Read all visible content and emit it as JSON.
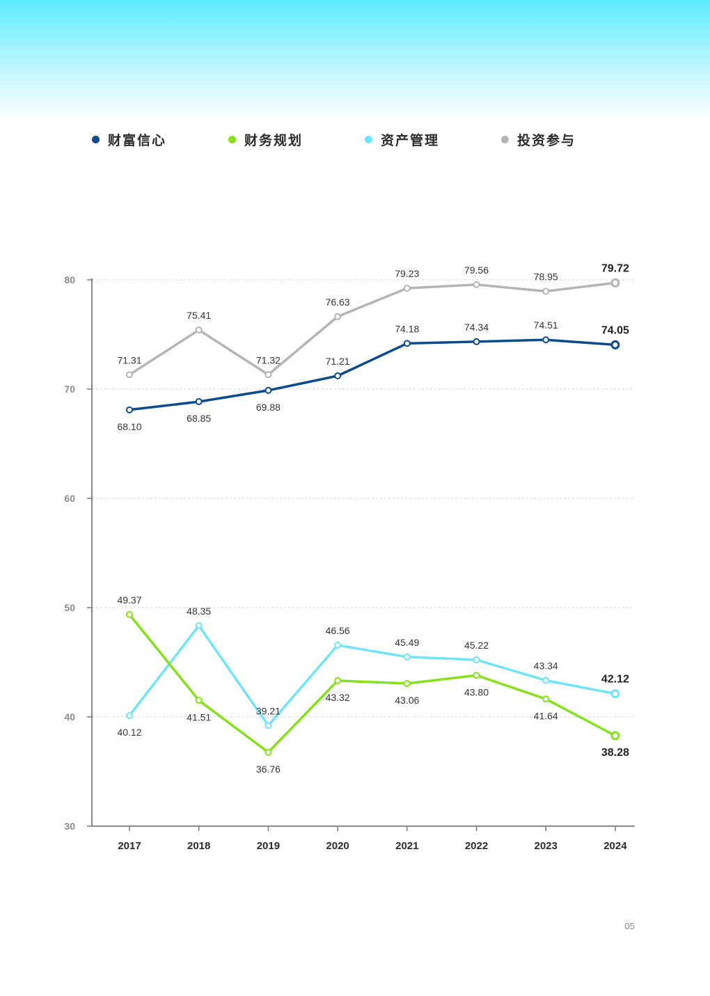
{
  "page_number": "05",
  "legend": [
    {
      "label": "财富信心",
      "color": "#0b4a8c"
    },
    {
      "label": "财务规划",
      "color": "#86e01b"
    },
    {
      "label": "资产管理",
      "color": "#6fe3f7"
    },
    {
      "label": "投资参与",
      "color": "#b4b4b4"
    }
  ],
  "chart_data": {
    "type": "line",
    "x": [
      "2017",
      "2018",
      "2019",
      "2020",
      "2021",
      "2022",
      "2023",
      "2024"
    ],
    "ylim": [
      30,
      80
    ],
    "yticks": [
      "30",
      "40",
      "50",
      "60",
      "70",
      "80"
    ],
    "grid": true,
    "legend_position": "top",
    "series": [
      {
        "name": "财富信心",
        "color": "#0b4a8c",
        "values": [
          68.1,
          68.85,
          69.88,
          71.21,
          74.18,
          74.34,
          74.51,
          74.05
        ],
        "labels": [
          "68.10",
          "68.85",
          "69.88",
          "71.21",
          "74.18",
          "74.34",
          "74.51",
          "74.05"
        ],
        "label_positions": [
          "below",
          "below",
          "below",
          "above",
          "above",
          "above",
          "above",
          "above"
        ]
      },
      {
        "name": "财务规划",
        "color": "#86e01b",
        "values": [
          49.37,
          41.51,
          36.76,
          43.32,
          43.06,
          43.8,
          41.64,
          38.28
        ],
        "labels": [
          "49.37",
          "41.51",
          "36.76",
          "43.32",
          "43.06",
          "43.80",
          "41.64",
          "38.28"
        ],
        "label_positions": [
          "above",
          "below",
          "below",
          "below",
          "below",
          "below",
          "below",
          "below"
        ]
      },
      {
        "name": "资产管理",
        "color": "#6fe3f7",
        "values": [
          40.12,
          48.35,
          39.21,
          46.56,
          45.49,
          45.22,
          43.34,
          42.12
        ],
        "labels": [
          "40.12",
          "48.35",
          "39.21",
          "46.56",
          "45.49",
          "45.22",
          "43.34",
          "42.12"
        ],
        "label_positions": [
          "below",
          "above",
          "above",
          "above",
          "above",
          "above",
          "above",
          "above"
        ]
      },
      {
        "name": "投资参与",
        "color": "#b4b4b4",
        "values": [
          71.31,
          75.41,
          71.32,
          76.63,
          79.23,
          79.56,
          78.95,
          79.72
        ],
        "labels": [
          "71.31",
          "75.41",
          "71.32",
          "76.63",
          "79.23",
          "79.56",
          "78.95",
          "79.72"
        ],
        "label_positions": [
          "above",
          "above",
          "above",
          "above",
          "above",
          "above",
          "above",
          "above"
        ]
      }
    ]
  }
}
